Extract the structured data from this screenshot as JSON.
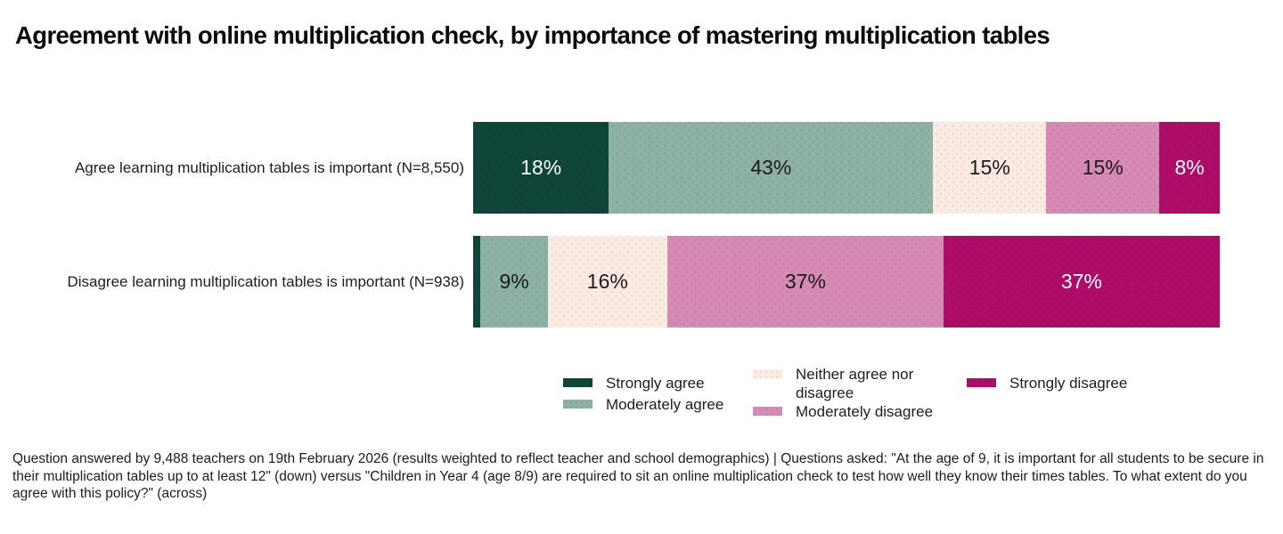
{
  "title": "Agreement with online multiplication check, by importance of mastering multiplication tables",
  "chart_data": {
    "type": "bar",
    "subtype": "horizontal-stacked-100pct",
    "categories": [
      "Agree learning multiplication tables is important (N=8,550)",
      "Disagree learning multiplication tables is important (N=938)"
    ],
    "series": [
      {
        "name": "Strongly agree",
        "color": "#10453a",
        "label_color": "#ffffff",
        "values": [
          18,
          1
        ],
        "data_labels": [
          "18%",
          ""
        ]
      },
      {
        "name": "Moderately agree",
        "color": "#8db2a5",
        "label_color": "#1a1a1a",
        "values": [
          43,
          9
        ],
        "data_labels": [
          "43%",
          "9%"
        ]
      },
      {
        "name": "Neither agree nor disagree",
        "color": "#fcebe2",
        "label_color": "#1a1a1a",
        "values": [
          15,
          16
        ],
        "data_labels": [
          "15%",
          "16%"
        ]
      },
      {
        "name": "Moderately disagree",
        "color": "#d78ab6",
        "label_color": "#1a1a1a",
        "values": [
          15,
          37
        ],
        "data_labels": [
          "15%",
          "37%"
        ]
      },
      {
        "name": "Strongly disagree",
        "color": "#ae0c68",
        "label_color": "#ffffff",
        "values": [
          8,
          37
        ],
        "data_labels": [
          "8%",
          "37%"
        ]
      }
    ],
    "xlim": [
      0,
      100
    ],
    "grid": false,
    "legend_position": "bottom",
    "value_unit": "%"
  },
  "footnote": {
    "text": "Question answered by 9,488 teachers on 19th February 2026 (results weighted to reflect teacher and school demographics) | Questions asked: \"At the age of 9, it is important for all students to be secure in their multiplication tables up to at least 12\" (down) versus \"Children in Year 4 (age 8/9) are required to sit an online multiplication check to test how well they know their times tables. To what extent do you agree with this policy?\" (across)"
  }
}
